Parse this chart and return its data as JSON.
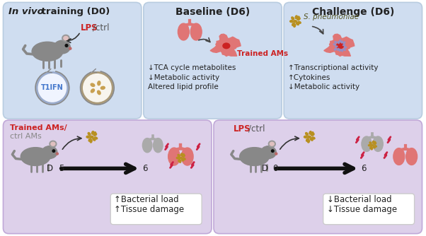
{
  "bg_top": "#cfddf0",
  "bg_bottom": "#ddd0ea",
  "title_color": "#222222",
  "red_color": "#cc2222",
  "blue_color": "#5588cc",
  "panel1_title_italic": "In vivo",
  "panel1_title_rest": " training (D0)",
  "panel2_title": "Baseline (D6)",
  "panel3_title": "Challenge (D6)",
  "panel2_lines": [
    "↓TCA cycle metabolites",
    "↓Metabolic activity",
    "Altered lipid profile"
  ],
  "panel3_lines": [
    "↑Transcriptional activity",
    "↑Cytokines",
    "↓Metabolic activity"
  ],
  "bottom_left_label_red": "Trained AMs/",
  "bottom_left_label_gray": "ctrl AMs",
  "bottom_right_label_red": "LPS",
  "bottom_right_label_gray": "/ctrl",
  "bottom_left_outcome": [
    "↑Bacterial load",
    "↑Tissue damage"
  ],
  "bottom_right_outcome": [
    "↓Bacterial load",
    "↓Tissue damage"
  ],
  "lung_pink": "#e07575",
  "lung_gray": "#aaaaaa",
  "cell_pink": "#e07575",
  "bacteria_gold": "#b89020",
  "bacteria_blue": "#9090cc",
  "zigzag_color": "#cc2244",
  "mouse_body": "#888888",
  "white": "#ffffff"
}
